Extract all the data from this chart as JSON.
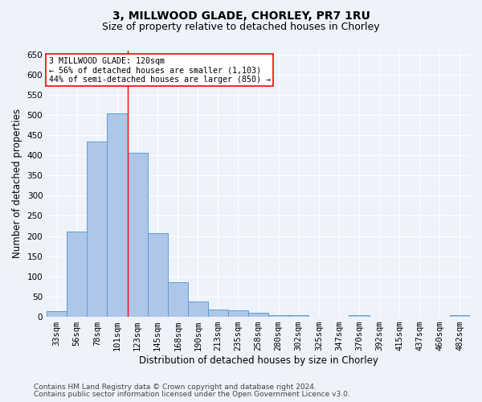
{
  "title": "3, MILLWOOD GLADE, CHORLEY, PR7 1RU",
  "subtitle": "Size of property relative to detached houses in Chorley",
  "xlabel": "Distribution of detached houses by size in Chorley",
  "ylabel": "Number of detached properties",
  "footer_line1": "Contains HM Land Registry data © Crown copyright and database right 2024.",
  "footer_line2": "Contains public sector information licensed under the Open Government Licence v3.0.",
  "categories": [
    "33sqm",
    "56sqm",
    "78sqm",
    "101sqm",
    "123sqm",
    "145sqm",
    "168sqm",
    "190sqm",
    "213sqm",
    "235sqm",
    "258sqm",
    "280sqm",
    "302sqm",
    "325sqm",
    "347sqm",
    "370sqm",
    "392sqm",
    "415sqm",
    "437sqm",
    "460sqm",
    "482sqm"
  ],
  "values": [
    15,
    212,
    435,
    503,
    407,
    207,
    85,
    38,
    18,
    17,
    11,
    5,
    5,
    0,
    0,
    5,
    0,
    0,
    0,
    0,
    5
  ],
  "bar_color": "#aec6e8",
  "bar_edge_color": "#5a9fd4",
  "vline_x": 3.5,
  "annotation_text_line1": "3 MILLWOOD GLADE: 120sqm",
  "annotation_text_line2": "← 56% of detached houses are smaller (1,103)",
  "annotation_text_line3": "44% of semi-detached houses are larger (850) →",
  "annotation_box_color": "white",
  "annotation_box_edge_color": "red",
  "vline_color": "red",
  "ylim": [
    0,
    660
  ],
  "yticks": [
    0,
    50,
    100,
    150,
    200,
    250,
    300,
    350,
    400,
    450,
    500,
    550,
    600,
    650
  ],
  "bg_color": "#eef2fb",
  "grid_color": "white",
  "title_fontsize": 10,
  "subtitle_fontsize": 9,
  "axis_label_fontsize": 8.5,
  "tick_fontsize": 7.5,
  "footer_fontsize": 6.5
}
